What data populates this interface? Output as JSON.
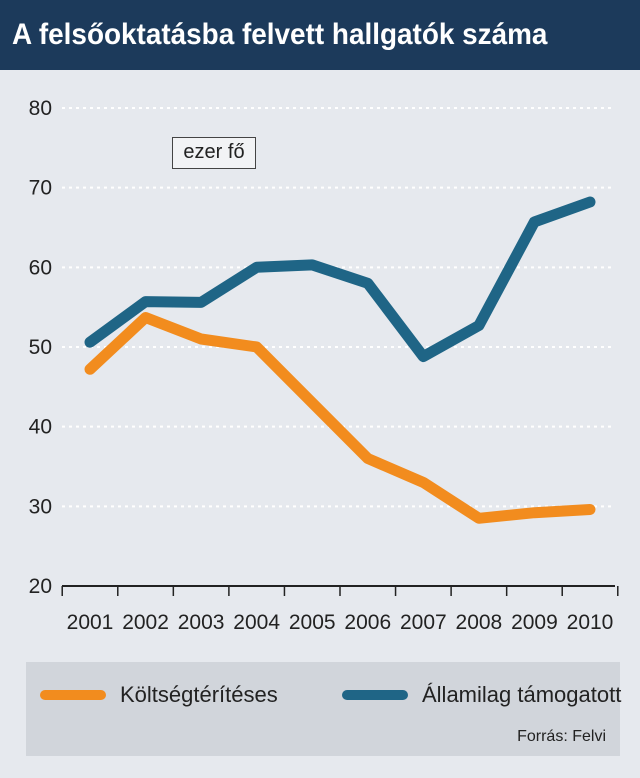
{
  "header": {
    "title": "A felsőoktatásba felvett hallgatók száma"
  },
  "unit_label": "ezer fő",
  "source": "Forrás: Felvi",
  "colors": {
    "header_bg": "#1c3a5b",
    "background": "#e6e9ee",
    "legend_bg": "#d1d5db",
    "koltseg": "#f28c1e",
    "allami": "#1f6586"
  },
  "chart_data": {
    "type": "line",
    "title": "A felsőoktatásba felvett hallgatók száma",
    "ylabel": "ezer fő",
    "xlabel": "",
    "ylim": [
      20,
      80
    ],
    "yticks": [
      20,
      30,
      40,
      50,
      60,
      70,
      80
    ],
    "grid": true,
    "legend_position": "bottom",
    "x": [
      "2001",
      "2002",
      "2003",
      "2004",
      "2005",
      "2006",
      "2007",
      "2008",
      "2009",
      "2010"
    ],
    "series": [
      {
        "name": "Költségtérítéses",
        "color": "#f28c1e",
        "values": [
          47.2,
          53.7,
          51.0,
          50.0,
          43.0,
          36.0,
          33.0,
          28.5,
          29.2,
          29.6
        ]
      },
      {
        "name": "Államilag támogatott",
        "color": "#1f6586",
        "values": [
          50.6,
          55.7,
          55.6,
          60.0,
          60.3,
          58.0,
          48.8,
          52.7,
          65.7,
          68.2
        ]
      }
    ]
  }
}
